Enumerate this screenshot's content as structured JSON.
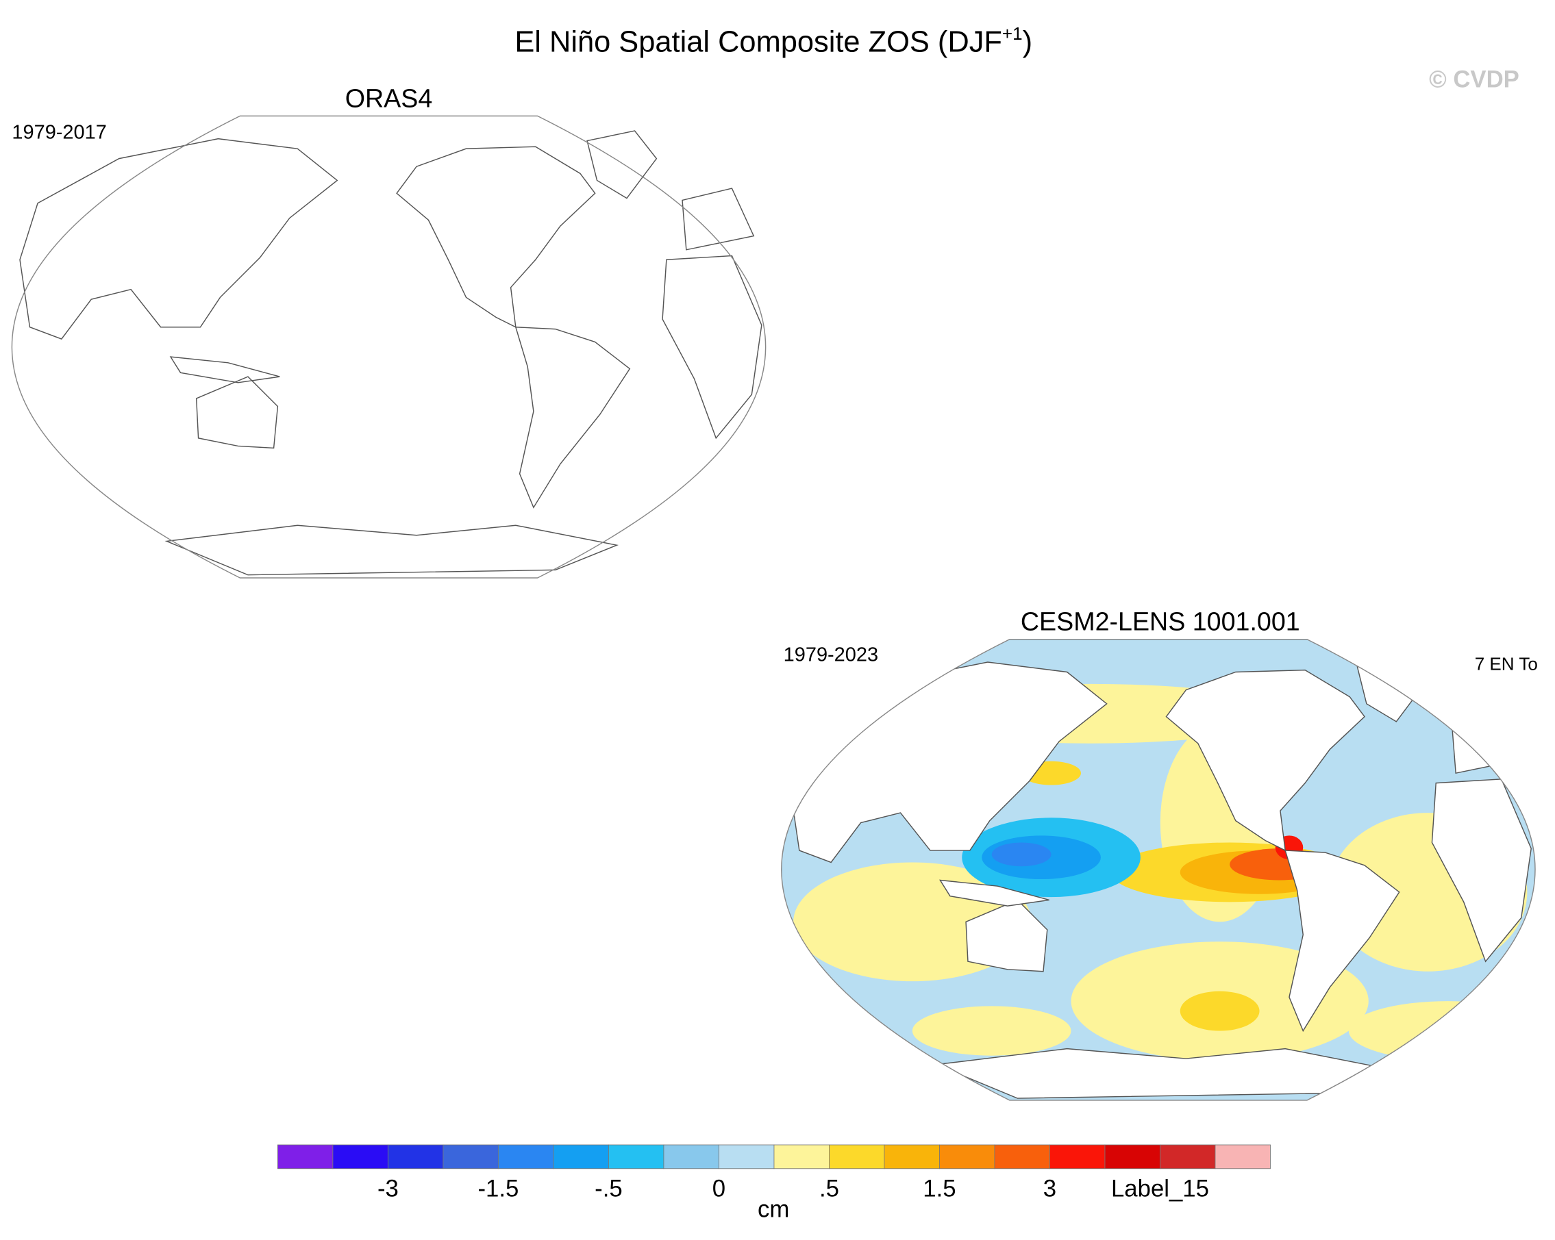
{
  "title": "El Niño Spatial Composite ZOS (DJF",
  "title_superscript": "+1",
  "title_end": ")",
  "watermark": "© CVDP",
  "panels": [
    {
      "title": "ORAS4",
      "years": "1979-2017"
    },
    {
      "title": "CESM2-LENS 1001.001",
      "years": "1979-2023",
      "note": "7 EN To"
    }
  ],
  "colorbar": {
    "colors": [
      "#7f1fe8",
      "#2a0cf5",
      "#2233e6",
      "#3a66dc",
      "#2a86f2",
      "#149ff2",
      "#24c0f2",
      "#88c8ec",
      "#b8def2",
      "#fdf49a",
      "#fcd92a",
      "#f9b40a",
      "#f98c0a",
      "#f8600c",
      "#fa1508",
      "#d80404",
      "#d22828",
      "#f8b4b4"
    ],
    "labels": [
      "-3",
      "-1.5",
      "-.5",
      "0",
      ".5",
      "1.5",
      "3",
      "Label_15"
    ],
    "units": "cm"
  }
}
